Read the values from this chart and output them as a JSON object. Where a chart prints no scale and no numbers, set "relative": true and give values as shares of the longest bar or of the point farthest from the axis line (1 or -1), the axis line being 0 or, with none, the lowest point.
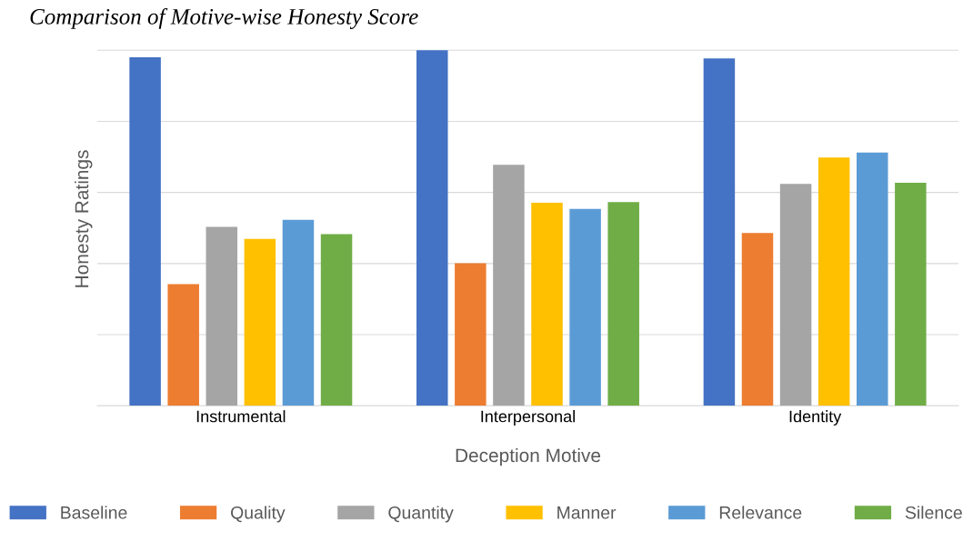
{
  "chart_data": {
    "type": "bar",
    "relative": true,
    "title": "Comparison of Motive-wise Honesty Score",
    "xlabel": "Deception Motive",
    "ylabel": "Honesty Ratings",
    "categories": [
      "Instrumental",
      "Interpersonal",
      "Identity"
    ],
    "grid": "y",
    "legend": "bottom",
    "series": [
      {
        "name": "Baseline",
        "color": "#4472c4",
        "values": [
          0.98,
          1.0,
          0.977
        ]
      },
      {
        "name": "Quality",
        "color": "#ed7d31",
        "values": [
          0.342,
          0.401,
          0.486
        ]
      },
      {
        "name": "Quantity",
        "color": "#a5a5a5",
        "values": [
          0.503,
          0.678,
          0.624
        ]
      },
      {
        "name": "Manner",
        "color": "#ffc000",
        "values": [
          0.469,
          0.571,
          0.698
        ]
      },
      {
        "name": "Relevance",
        "color": "#5b9bd5",
        "values": [
          0.523,
          0.554,
          0.712
        ]
      },
      {
        "name": "Silence",
        "color": "#70ad47",
        "values": [
          0.483,
          0.573,
          0.627
        ]
      }
    ]
  }
}
